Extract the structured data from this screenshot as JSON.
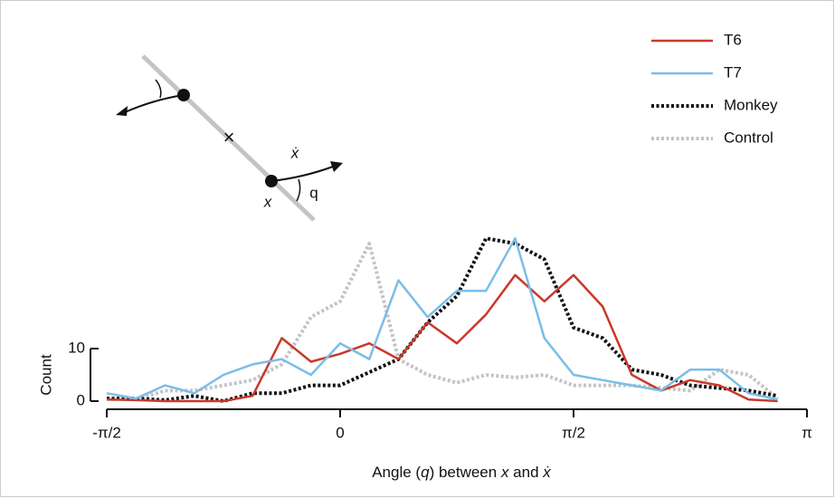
{
  "chart_data": {
    "type": "line",
    "x_label_parts": [
      "Angle (",
      "q",
      ") between ",
      "x",
      " and ",
      "ẋ"
    ],
    "y_label": "Count",
    "x": [
      -1.5708,
      -1.3744,
      -1.1781,
      -0.9817,
      -0.7854,
      -0.589,
      -0.3927,
      -0.1963,
      0,
      0.1963,
      0.3927,
      0.589,
      0.7854,
      0.9817,
      1.1781,
      1.3744,
      1.5708,
      1.7671,
      1.9635,
      2.1598,
      2.3562,
      2.5525,
      2.7489,
      2.9452
    ],
    "series": [
      {
        "name": "T6",
        "color": "#c8392b",
        "dash": false,
        "values": [
          0.3,
          0.2,
          0,
          0,
          0,
          1,
          12,
          7.5,
          9,
          11,
          8,
          15,
          11,
          16.5,
          24,
          19,
          24,
          18,
          5,
          2,
          4,
          3,
          0.3,
          0
        ]
      },
      {
        "name": "T7",
        "color": "#7bbde8",
        "dash": false,
        "values": [
          1.5,
          0.5,
          3,
          1.5,
          5,
          7,
          8,
          5,
          11,
          8,
          23,
          16,
          21,
          21,
          31,
          12,
          5,
          4,
          3,
          2,
          6,
          6,
          1.5,
          0.3
        ]
      },
      {
        "name": "Monkey",
        "color": "#111111",
        "dash": true,
        "values": [
          0.5,
          0.5,
          0.2,
          1,
          0,
          1.5,
          1.5,
          3,
          3,
          5.5,
          8,
          15,
          20,
          31,
          30,
          27,
          14,
          12,
          6,
          5,
          3,
          2.5,
          2,
          1
        ]
      },
      {
        "name": "Control",
        "color": "#c4c4c4",
        "dash": true,
        "values": [
          0.5,
          0.3,
          2,
          2,
          3,
          4,
          7,
          16,
          19,
          30,
          8,
          5,
          3.5,
          5,
          4.5,
          5,
          3,
          3,
          3,
          2.5,
          2,
          6,
          5,
          0.5
        ]
      }
    ],
    "xlim": [
      -1.5708,
      3.1416
    ],
    "xticks": [
      {
        "value": -1.5708,
        "label": "-π/2"
      },
      0,
      {
        "value": 1.5708,
        "label": "π/2"
      },
      {
        "value": 3.1416,
        "label": "π"
      }
    ],
    "ylim": [
      0,
      32
    ],
    "yticks": [
      0,
      10
    ],
    "legend": "upper right",
    "diagram_labels": {
      "velocity": "ẋ",
      "position": "x",
      "angle": "q",
      "center": "×"
    }
  }
}
